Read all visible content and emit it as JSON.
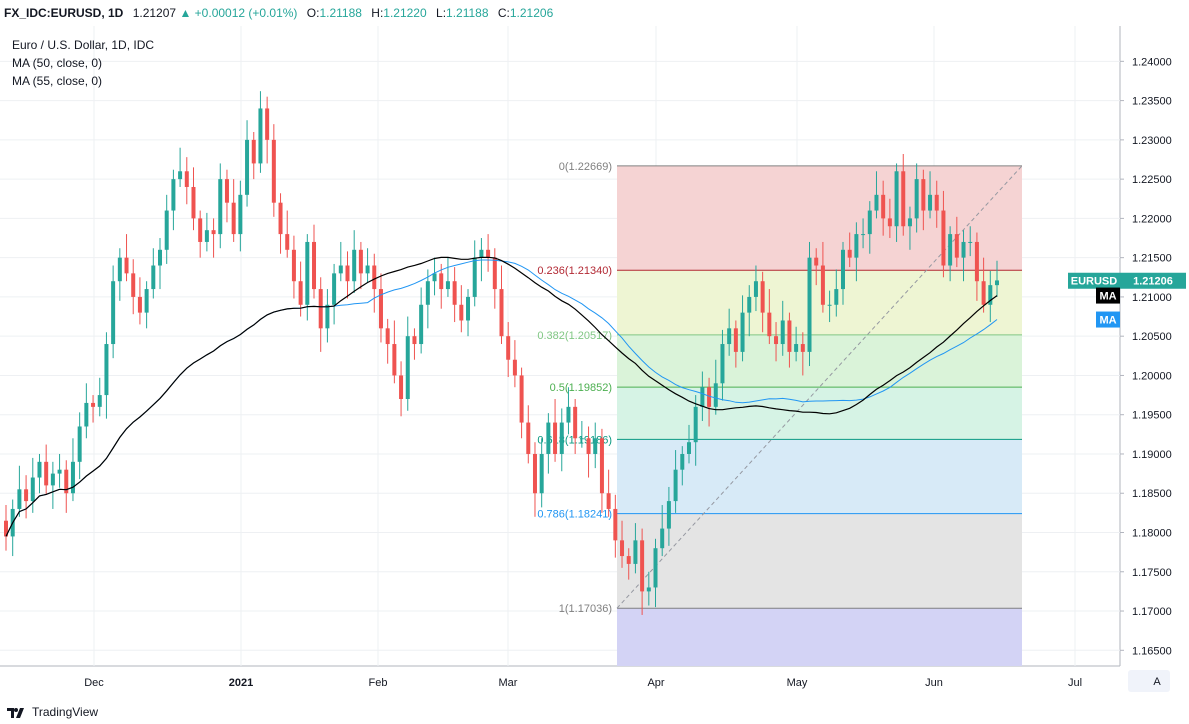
{
  "header": {
    "symbol": "FX_IDC:EURUSD, 1D",
    "last": "1.21207",
    "change": "+0.00012 (+0.01%)",
    "o_label": "O:",
    "o": "1.21188",
    "h_label": "H:",
    "h": "1.21220",
    "l_label": "L:",
    "l": "1.21188",
    "c_label": "C:",
    "c": "1.21206"
  },
  "legend": {
    "title": "Euro / U.S. Dollar, 1D, IDC",
    "ma1": "MA (50, close, 0)",
    "ma2": "MA (55, close, 0)"
  },
  "footer": {
    "brand": "TradingView",
    "auto_button": "A"
  },
  "colors": {
    "up": "#26a69a",
    "down": "#ef5350",
    "ma50": "#000000",
    "ma55": "#2196f3"
  },
  "chart_data": {
    "type": "candlestick",
    "y_ticks": [
      "1.24000",
      "1.23500",
      "1.23000",
      "1.22500",
      "1.22000",
      "1.21500",
      "1.21000",
      "1.20500",
      "1.20000",
      "1.19500",
      "1.19000",
      "1.18500",
      "1.18000",
      "1.17500",
      "1.17000",
      "1.16500"
    ],
    "x_ticks": [
      "Dec",
      "2021",
      "Feb",
      "Mar",
      "Apr",
      "May",
      "Jun",
      "Jul"
    ],
    "ylim": [
      1.163,
      1.2445
    ],
    "grid": true,
    "last_price_tag": {
      "label": "EURUSD",
      "value": "1.21206"
    },
    "ma_tags": [
      "MA",
      "MA"
    ],
    "fibonacci": {
      "levels": [
        {
          "ratio": 0,
          "price": 1.22669,
          "label": "0(1.22669)",
          "color": "#808080"
        },
        {
          "ratio": 0.236,
          "price": 1.2134,
          "label": "0.236(1.21340)",
          "color": "#b22833"
        },
        {
          "ratio": 0.382,
          "price": 1.20517,
          "label": "0.382(1.20517)",
          "color": "#81c784"
        },
        {
          "ratio": 0.5,
          "price": 1.19852,
          "label": "0.5(1.19852)",
          "color": "#4caf50"
        },
        {
          "ratio": 0.618,
          "price": 1.19186,
          "label": "0.618(1.19186)",
          "color": "#089981"
        },
        {
          "ratio": 0.786,
          "price": 1.18241,
          "label": "0.786(1.18241)",
          "color": "#2196f3"
        },
        {
          "ratio": 1,
          "price": 1.17036,
          "label": "1(1.17036)",
          "color": "#808080"
        }
      ],
      "zones": [
        "#f5d3d3",
        "#eef5d3",
        "#daf3d9",
        "#d6f3e5",
        "#d7eaf7",
        "#e4e4e4",
        "#d3d3f5"
      ]
    },
    "closes": [
      1.1795,
      1.183,
      1.1855,
      1.184,
      1.187,
      1.189,
      1.186,
      1.1875,
      1.188,
      1.185,
      1.189,
      1.1935,
      1.1965,
      1.196,
      1.1975,
      1.204,
      1.212,
      1.215,
      1.213,
      1.21,
      1.208,
      1.211,
      1.214,
      1.216,
      1.221,
      1.225,
      1.226,
      1.224,
      1.22,
      1.217,
      1.2185,
      1.218,
      1.225,
      1.222,
      1.218,
      1.223,
      1.23,
      1.227,
      1.234,
      1.23,
      1.222,
      1.218,
      1.216,
      1.212,
      1.209,
      1.217,
      1.211,
      1.206,
      1.209,
      1.213,
      1.214,
      1.212,
      1.216,
      1.213,
      1.214,
      1.211,
      1.206,
      1.204,
      1.2,
      1.197,
      1.205,
      1.204,
      1.209,
      1.212,
      1.213,
      1.211,
      1.212,
      1.209,
      1.207,
      1.21,
      1.215,
      1.216,
      1.215,
      1.211,
      1.205,
      1.202,
      1.2,
      1.194,
      1.19,
      1.185,
      1.19,
      1.194,
      1.19,
      1.194,
      1.196,
      1.192,
      1.192,
      1.19,
      1.192,
      1.185,
      1.183,
      1.179,
      1.177,
      1.176,
      1.179,
      1.1725,
      1.173,
      1.178,
      1.1805,
      1.184,
      1.188,
      1.19,
      1.1915,
      1.196,
      1.1985,
      1.196,
      1.199,
      1.204,
      1.206,
      1.203,
      1.208,
      1.21,
      1.212,
      1.208,
      1.205,
      1.204,
      1.207,
      1.203,
      1.204,
      1.203,
      1.215,
      1.214,
      1.209,
      1.209,
      1.211,
      1.216,
      1.215,
      1.218,
      1.218,
      1.221,
      1.223,
      1.22,
      1.219,
      1.226,
      1.219,
      1.22,
      1.225,
      1.221,
      1.223,
      1.221,
      1.214,
      1.218,
      1.215,
      1.217,
      1.217,
      1.212,
      1.209,
      1.2115,
      1.2121
    ],
    "ma50_label": "MA (50, close, 0)",
    "ma55_label": "MA (55, close, 0)"
  }
}
